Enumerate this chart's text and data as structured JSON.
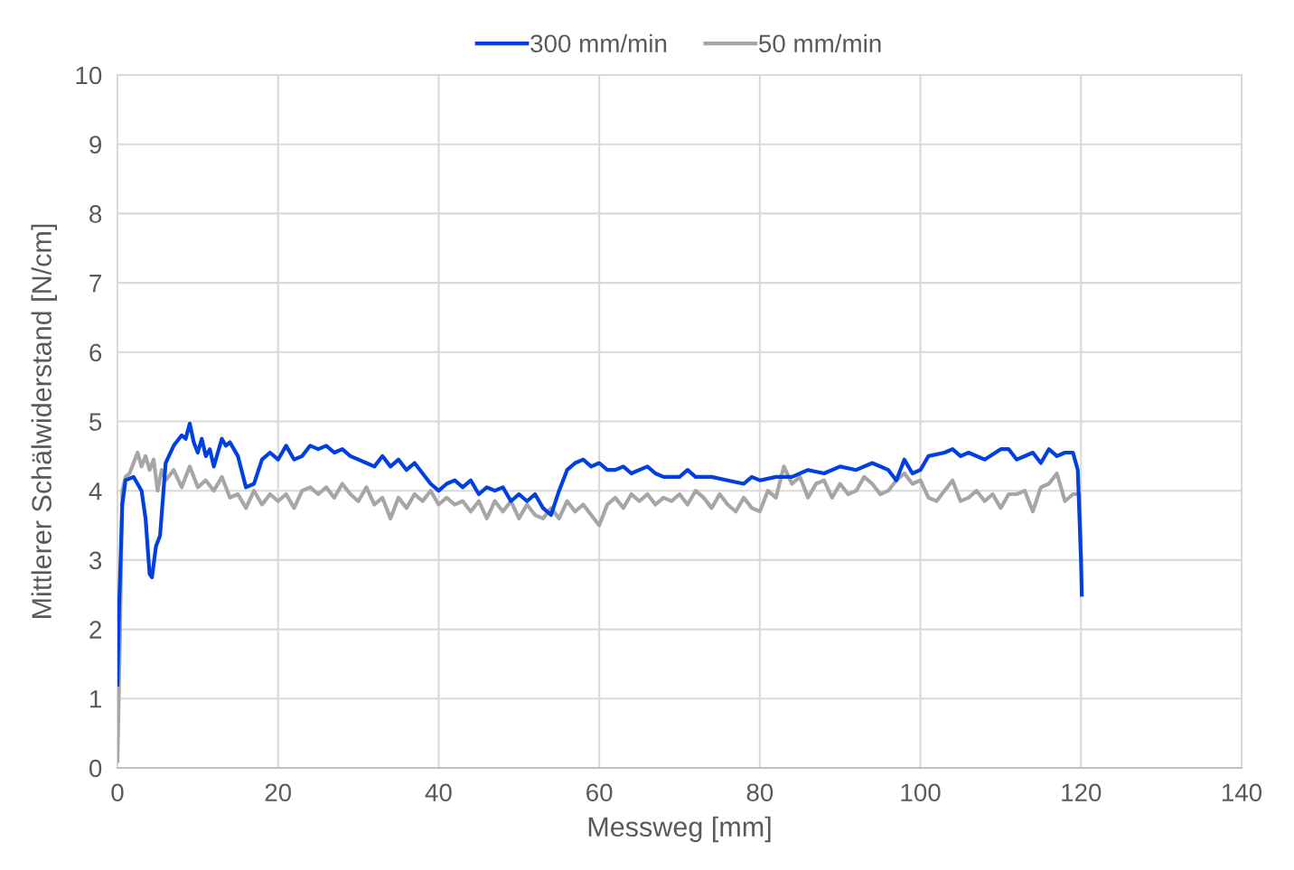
{
  "chart_data": {
    "type": "line",
    "xlabel": "Messweg [mm]",
    "ylabel": "Mittlerer Schälwiderstand [N/cm]",
    "xlim": [
      0,
      140
    ],
    "xticks": [
      0,
      20,
      40,
      60,
      80,
      100,
      120,
      140
    ],
    "ylim": [
      0,
      10
    ],
    "yticks": [
      0,
      1,
      2,
      3,
      4,
      5,
      6,
      7,
      8,
      9,
      10
    ],
    "grid": true,
    "legend": "top",
    "marker": "none",
    "line_style": "solid",
    "series": [
      {
        "name": "300 mm/min",
        "color": "#0040e0",
        "x": [
          0,
          0.2,
          0.6,
          1,
          2,
          2.5,
          3,
          3.5,
          4,
          4.3,
          4.8,
          5.3,
          6,
          7,
          8,
          8.5,
          9,
          9.5,
          10,
          10.5,
          11,
          11.5,
          12,
          13,
          13.5,
          14,
          15,
          16,
          17,
          18,
          19,
          20,
          21,
          22,
          23,
          24,
          25,
          26,
          27,
          28,
          29,
          30,
          31,
          32,
          33,
          34,
          35,
          36,
          37,
          38,
          39,
          40,
          41,
          42,
          43,
          44,
          45,
          46,
          47,
          48,
          49,
          50,
          51,
          52,
          53,
          54,
          55,
          56,
          57,
          58,
          59,
          60,
          61,
          62,
          63,
          64,
          65,
          66,
          67,
          68,
          70,
          71,
          72,
          74,
          76,
          78,
          79,
          80,
          82,
          84,
          86,
          88,
          90,
          92,
          94,
          96,
          97,
          98,
          99,
          100,
          101,
          103,
          104,
          105,
          106,
          108,
          110,
          111,
          112,
          114,
          115,
          116,
          117,
          118,
          119,
          119.6,
          120,
          120.1
        ],
        "values": [
          1.2,
          2.3,
          3.8,
          4.15,
          4.2,
          4.1,
          4.0,
          3.6,
          2.8,
          2.75,
          3.2,
          3.35,
          4.4,
          4.65,
          4.8,
          4.75,
          4.97,
          4.7,
          4.55,
          4.75,
          4.5,
          4.6,
          4.35,
          4.75,
          4.65,
          4.7,
          4.5,
          4.05,
          4.1,
          4.45,
          4.55,
          4.45,
          4.65,
          4.45,
          4.5,
          4.65,
          4.6,
          4.65,
          4.55,
          4.6,
          4.5,
          4.45,
          4.4,
          4.35,
          4.5,
          4.35,
          4.45,
          4.3,
          4.4,
          4.25,
          4.1,
          4.0,
          4.1,
          4.15,
          4.05,
          4.15,
          3.95,
          4.05,
          4.0,
          4.05,
          3.85,
          3.95,
          3.85,
          3.95,
          3.75,
          3.65,
          4.0,
          4.3,
          4.4,
          4.45,
          4.35,
          4.4,
          4.3,
          4.3,
          4.35,
          4.25,
          4.3,
          4.35,
          4.25,
          4.2,
          4.2,
          4.3,
          4.2,
          4.2,
          4.15,
          4.1,
          4.2,
          4.15,
          4.2,
          4.2,
          4.3,
          4.25,
          4.35,
          4.3,
          4.4,
          4.3,
          4.15,
          4.45,
          4.25,
          4.3,
          4.5,
          4.55,
          4.6,
          4.5,
          4.55,
          4.45,
          4.6,
          4.6,
          4.45,
          4.55,
          4.4,
          4.6,
          4.5,
          4.55,
          4.55,
          4.3,
          3.0,
          2.5
        ]
      },
      {
        "name": "50 mm/min",
        "color": "#a6a6a6",
        "x": [
          0,
          0.3,
          0.6,
          1,
          1.5,
          2,
          2.5,
          3,
          3.5,
          4,
          4.5,
          5,
          5.5,
          6,
          7,
          8,
          9,
          10,
          11,
          12,
          13,
          14,
          15,
          16,
          17,
          18,
          19,
          20,
          21,
          22,
          23,
          24,
          25,
          26,
          27,
          28,
          29,
          30,
          31,
          32,
          33,
          34,
          35,
          36,
          37,
          38,
          39,
          40,
          41,
          42,
          43,
          44,
          45,
          46,
          47,
          48,
          49,
          50,
          51,
          52,
          53,
          54,
          55,
          56,
          57,
          58,
          59,
          60,
          61,
          62,
          63,
          64,
          65,
          66,
          67,
          68,
          69,
          70,
          71,
          72,
          73,
          74,
          75,
          76,
          77,
          78,
          79,
          80,
          81,
          82,
          83,
          84,
          85,
          86,
          87,
          88,
          89,
          90,
          91,
          92,
          93,
          94,
          95,
          96,
          97,
          98,
          99,
          100,
          101,
          102,
          103,
          104,
          105,
          106,
          107,
          108,
          109,
          110,
          111,
          112,
          113,
          114,
          115,
          116,
          117,
          118,
          119,
          119.8,
          120
        ],
        "values": [
          0.1,
          1.8,
          4.0,
          4.2,
          4.25,
          4.4,
          4.55,
          4.35,
          4.5,
          4.3,
          4.45,
          4.0,
          4.3,
          4.15,
          4.3,
          4.05,
          4.35,
          4.05,
          4.15,
          4.0,
          4.2,
          3.9,
          3.95,
          3.75,
          4.0,
          3.8,
          3.95,
          3.85,
          3.95,
          3.75,
          4.0,
          4.05,
          3.95,
          4.05,
          3.9,
          4.1,
          3.95,
          3.85,
          4.05,
          3.8,
          3.9,
          3.6,
          3.9,
          3.75,
          3.95,
          3.85,
          4.0,
          3.8,
          3.9,
          3.8,
          3.85,
          3.7,
          3.85,
          3.6,
          3.85,
          3.7,
          3.85,
          3.6,
          3.8,
          3.65,
          3.6,
          3.75,
          3.6,
          3.85,
          3.7,
          3.8,
          3.65,
          3.5,
          3.8,
          3.9,
          3.75,
          3.95,
          3.85,
          3.95,
          3.8,
          3.9,
          3.85,
          3.95,
          3.8,
          4.0,
          3.9,
          3.75,
          3.95,
          3.8,
          3.7,
          3.9,
          3.75,
          3.7,
          4.0,
          3.9,
          4.35,
          4.1,
          4.2,
          3.9,
          4.1,
          4.15,
          3.9,
          4.1,
          3.95,
          4.0,
          4.2,
          4.1,
          3.95,
          4.0,
          4.15,
          4.25,
          4.1,
          4.15,
          3.9,
          3.85,
          4.0,
          4.15,
          3.85,
          3.9,
          4.0,
          3.85,
          3.95,
          3.75,
          3.95,
          3.95,
          4.0,
          3.7,
          4.05,
          4.1,
          4.25,
          3.85,
          3.95,
          3.95,
          3.0
        ]
      }
    ]
  }
}
